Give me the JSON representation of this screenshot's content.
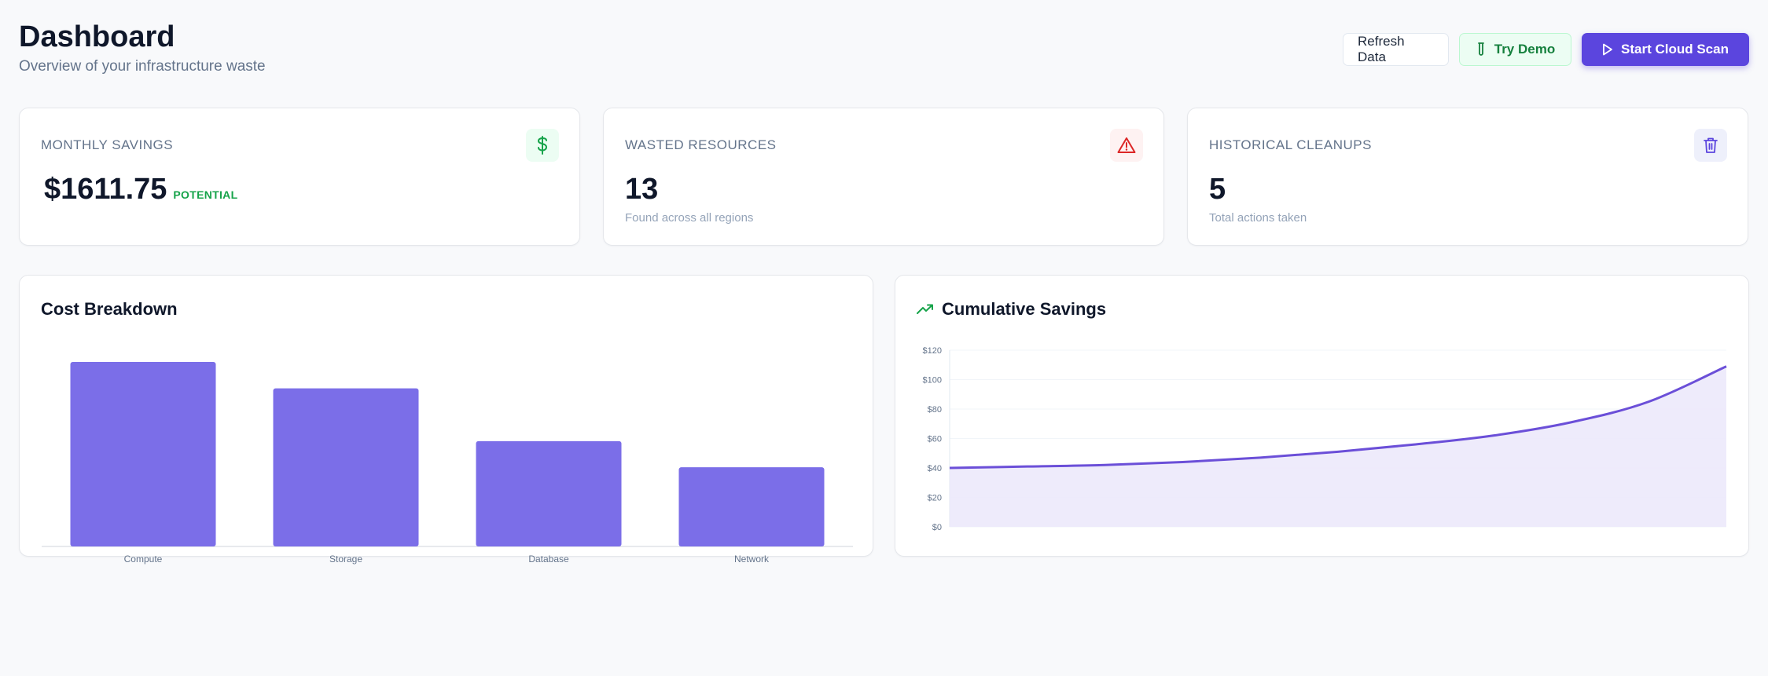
{
  "header": {
    "title": "Dashboard",
    "subtitle": "Overview of your infrastructure waste"
  },
  "actions": {
    "refresh_label": "Refresh Data",
    "demo_label": "Try Demo",
    "scan_label": "Start Cloud Scan"
  },
  "stats": [
    {
      "label": "MONTHLY SAVINGS",
      "value": "$1611.75",
      "badge": "POTENTIAL",
      "icon": "dollar-icon",
      "icon_color": "#16a34a",
      "icon_bg": "#ecfdf3"
    },
    {
      "label": "WASTED RESOURCES",
      "value": "13",
      "sub": "Found across all regions",
      "icon": "alert-triangle-icon",
      "icon_color": "#dc2626",
      "icon_bg": "#fef2f2"
    },
    {
      "label": "HISTORICAL CLEANUPS",
      "value": "5",
      "sub": "Total actions taken",
      "icon": "trash-icon",
      "icon_color": "#5b45de",
      "icon_bg": "#eef0fb"
    }
  ],
  "cost_breakdown": {
    "title": "Cost Breakdown"
  },
  "cumulative": {
    "title": "Cumulative Savings",
    "icon": "trending-up-icon"
  },
  "colors": {
    "accent": "#5b45de",
    "bar": "#7b6ee8",
    "line": "#6b4fd8",
    "area": "#ece9fb"
  },
  "chart_data": [
    {
      "type": "bar",
      "title": "Cost Breakdown",
      "categories": [
        "Compute",
        "Storage",
        "Database",
        "Network"
      ],
      "values": [
        100,
        85.7,
        57.1,
        42.9
      ],
      "ylim": [
        0,
        100
      ],
      "grid": false
    },
    {
      "type": "area",
      "title": "Cumulative Savings",
      "x": [
        0,
        1,
        2,
        3,
        4,
        5,
        6,
        7,
        8,
        9,
        10
      ],
      "y": [
        40,
        41,
        42,
        44,
        47,
        51,
        56,
        62,
        71,
        85,
        109
      ],
      "yticks": [
        "$0",
        "$20",
        "$40",
        "$60",
        "$80",
        "$100",
        "$120"
      ],
      "ylim": [
        0,
        120
      ],
      "grid": true
    }
  ]
}
